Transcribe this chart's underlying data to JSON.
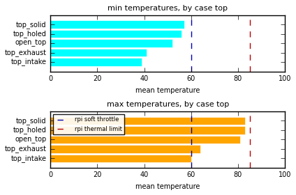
{
  "categories": [
    "top_solid",
    "top_holed",
    "open_top",
    "top_exhaust",
    "top_intake"
  ],
  "min_values": [
    57,
    56,
    52,
    41,
    39
  ],
  "max_values": [
    83,
    83,
    81,
    64,
    60
  ],
  "min_color": "cyan",
  "max_color": "orange",
  "soft_throttle": 60,
  "thermal_limit": 85,
  "soft_throttle_color": "#0000bb",
  "thermal_limit_color": "#bb0000",
  "title_min": "min temperatures, by case top",
  "title_max": "max temperatures, by case top",
  "xlabel": "mean temperature",
  "xlim": [
    0,
    100
  ],
  "xticks": [
    0,
    20,
    40,
    60,
    80,
    100
  ],
  "legend_soft": "rpi soft throttle",
  "legend_thermal": "rpi thermal limit",
  "bar_height": 0.85,
  "figsize": [
    4.24,
    2.8
  ],
  "dpi": 100
}
